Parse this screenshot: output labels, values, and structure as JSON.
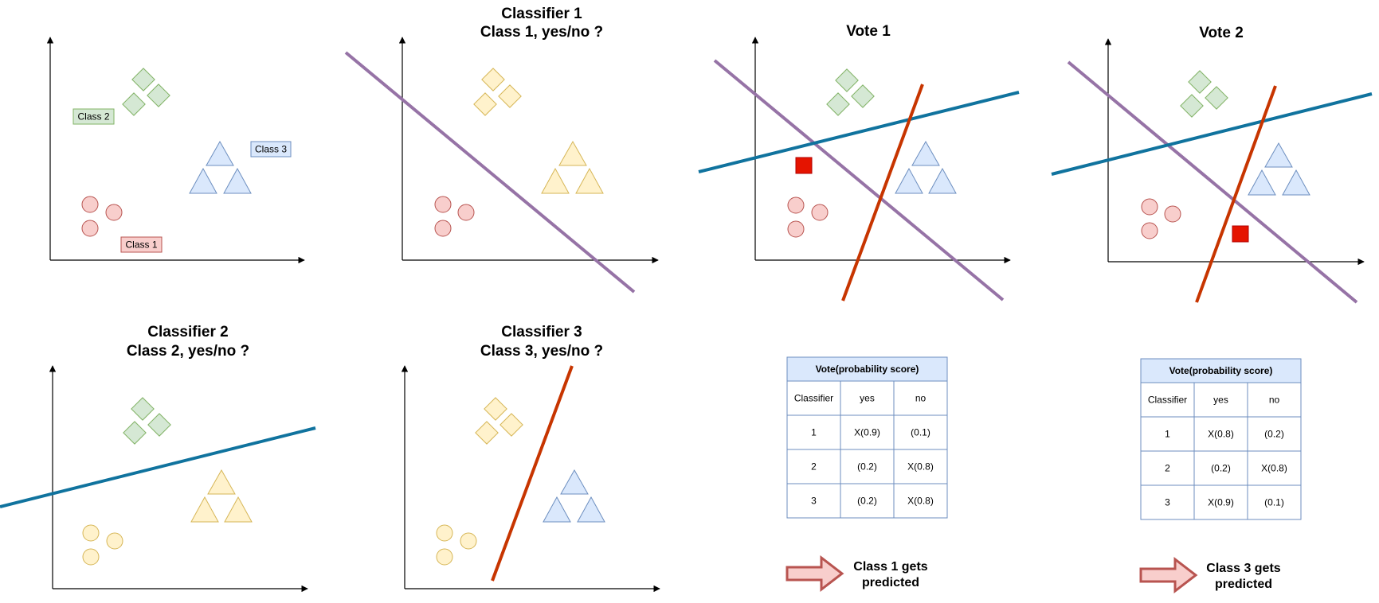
{
  "colors": {
    "class1_fill": "#f8cecc",
    "class1_stroke": "#b85450",
    "class2_fill": "#d5e8d4",
    "class2_stroke": "#82b366",
    "class3_fill": "#dae8fc",
    "class3_stroke": "#6c8ebf",
    "neutral_fill": "#fff2cc",
    "neutral_stroke": "#d6b656",
    "line_classifier1": "#9673a6",
    "line_classifier2": "#10739e",
    "line_classifier3": "#c73500",
    "query_point": "#e51400",
    "arrow_fill": "#f8cecc",
    "arrow_stroke": "#b85450"
  },
  "panels": {
    "original": {
      "class1_label": "Class 1",
      "class2_label": "Class 2",
      "class3_label": "Class 3"
    },
    "classifier1": {
      "title_line1": "Classifier 1",
      "title_line2": "Class 1, yes/no ?"
    },
    "classifier2": {
      "title_line1": "Classifier 2",
      "title_line2": "Class 2, yes/no ?"
    },
    "classifier3": {
      "title_line1": "Classifier 3",
      "title_line2": "Class 3, yes/no ?"
    },
    "vote1": {
      "title": "Vote 1"
    },
    "vote2": {
      "title": "Vote 2"
    }
  },
  "tables": [
    {
      "title": "Vote(probability score)",
      "headers": [
        "Classifier",
        "yes",
        "no"
      ],
      "rows": [
        [
          "1",
          "X(0.9)",
          "(0.1)"
        ],
        [
          "2",
          "(0.2)",
          "X(0.8)"
        ],
        [
          "3",
          "(0.2)",
          "X(0.8)"
        ]
      ],
      "prediction_line1": "Class 1 gets",
      "prediction_line2": "predicted"
    },
    {
      "title": "Vote(probability score)",
      "headers": [
        "Classifier",
        "yes",
        "no"
      ],
      "rows": [
        [
          "1",
          "X(0.8)",
          "(0.2)"
        ],
        [
          "2",
          "(0.2)",
          "X(0.8)"
        ],
        [
          "3",
          "X(0.9)",
          "(0.1)"
        ]
      ],
      "prediction_line1": "Class 3 gets",
      "prediction_line2": "predicted"
    }
  ]
}
